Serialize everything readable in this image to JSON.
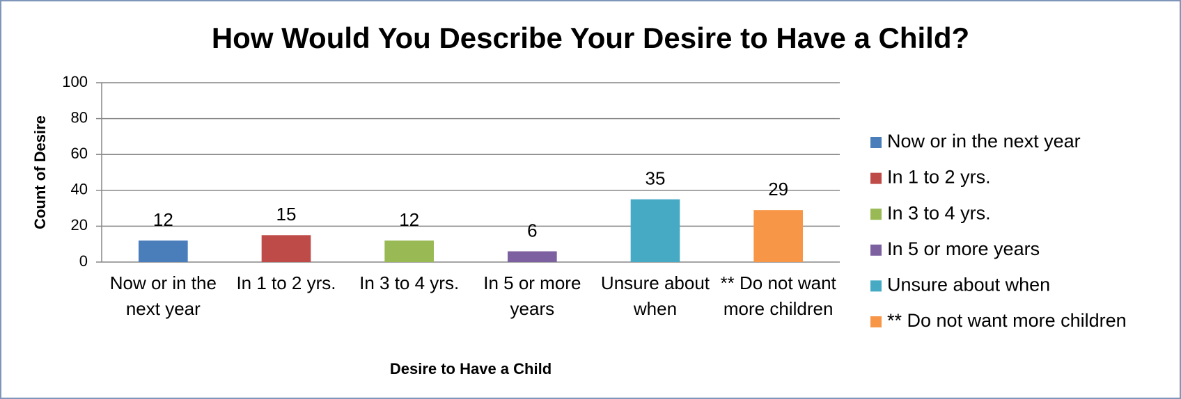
{
  "chart_data": {
    "type": "bar",
    "title": "How Would You Describe Your Desire to Have a Child?",
    "x_label": "Desire to Have a Child",
    "y_label": "Count of Desire",
    "categories": [
      "Now or in the next year",
      "In 1 to 2 yrs.",
      "In 3 to 4 yrs.",
      "In 5 or more years",
      "Unsure about when",
      "** Do not want more children"
    ],
    "values": [
      12,
      15,
      12,
      6,
      35,
      29
    ],
    "colors": [
      "#4a7ebb",
      "#be4b48",
      "#98b954",
      "#7d60a0",
      "#46aac5",
      "#f79646"
    ],
    "ylim": [
      0,
      100
    ],
    "yticks": [
      0,
      20,
      40,
      60,
      80,
      100
    ],
    "grid": true,
    "legend": "right"
  }
}
